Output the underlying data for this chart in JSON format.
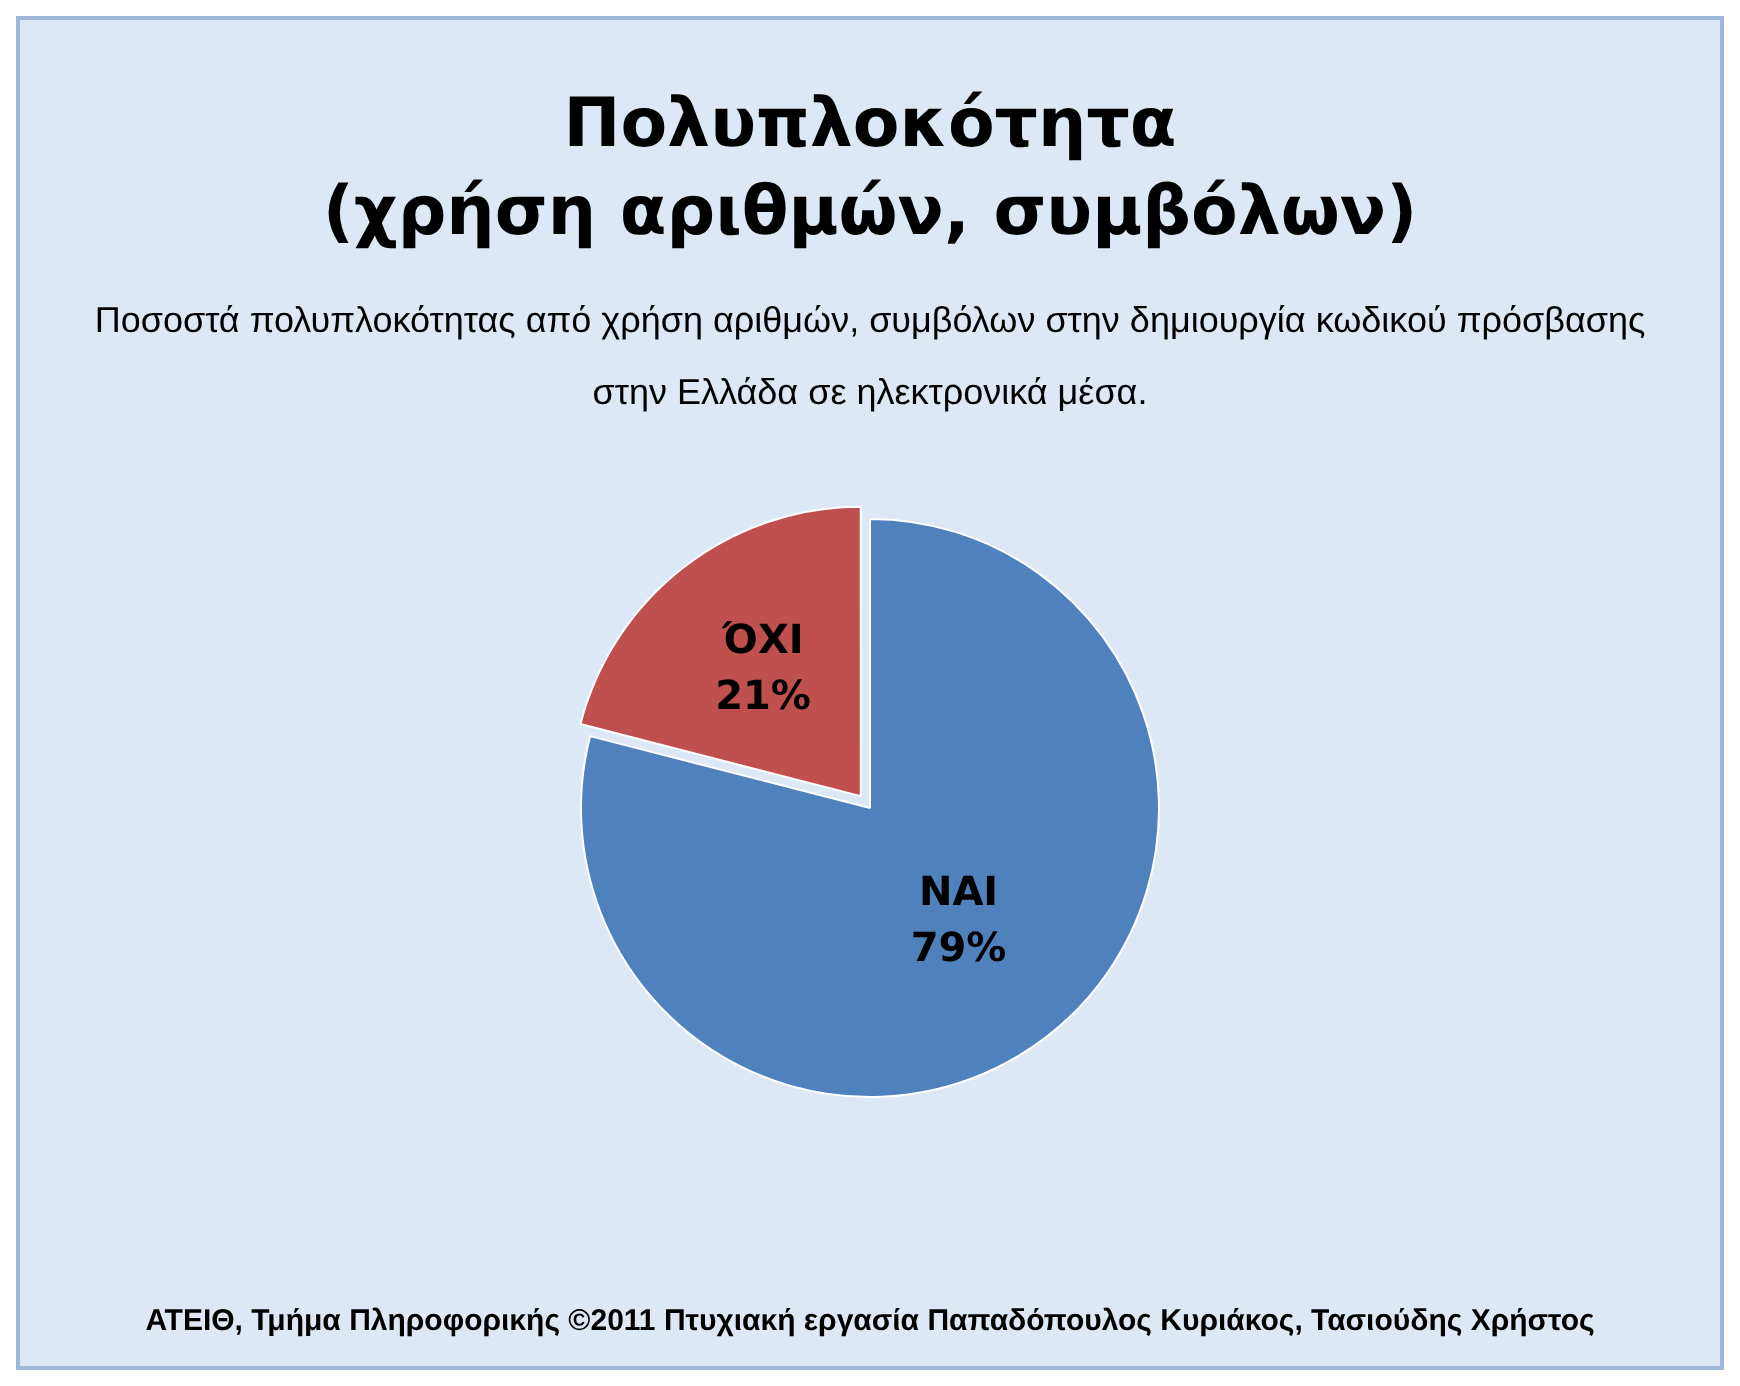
{
  "chart_data": {
    "type": "pie",
    "title": "Πολυπλοκότητα\n(χρήση αριθμών, συμβόλων)",
    "subtitle": "Ποσοστά πολυπλοκότητας από χρήση αριθμών, συμβόλων στην δημιουργία κωδικού πρόσβασης στην Ελλάδα σε ηλεκτρονικά μέσα.",
    "categories": [
      "ΝΑΙ",
      "ΌΧΙ"
    ],
    "values": [
      79,
      21
    ],
    "colors": [
      "#4f81bd",
      "#c0504d"
    ],
    "value_labels": [
      "79%",
      "21%"
    ],
    "annotations": [
      "ΑΤΕΙΘ, Τμήμα Πληροφορικής ©2011 Πτυχιακή εργασία Παπαδόπουλος Κυριάκος, Τασιούδης Χρήστος"
    ]
  }
}
